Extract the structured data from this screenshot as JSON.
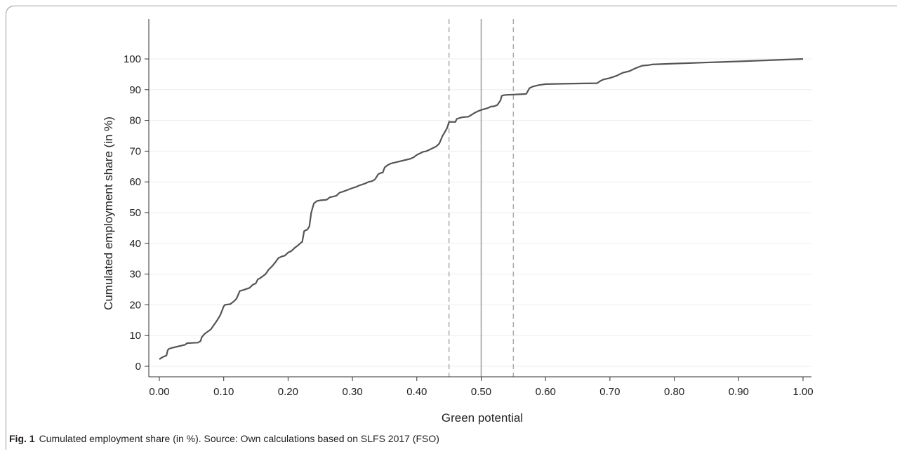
{
  "figure": {
    "label": "Fig. 1",
    "caption": "Cumulated employment share (in %). Source: Own calculations based on SLFS 2017 (FSO)"
  },
  "chart_data": {
    "type": "line",
    "xlabel": "Green potential",
    "ylabel": "Cumulated employment share (in %)",
    "xlim": [
      0,
      1
    ],
    "ylim": [
      0,
      100
    ],
    "x_ticks": [
      0,
      0.1,
      0.2,
      0.3,
      0.4,
      0.5,
      0.6,
      0.7,
      0.8,
      0.9,
      1.0
    ],
    "x_tick_labels": [
      "0.00",
      "0.10",
      "0.20",
      "0.30",
      "0.40",
      "0.50",
      "0.60",
      "0.70",
      "0.80",
      "0.90",
      "1.00"
    ],
    "y_ticks": [
      0,
      10,
      20,
      30,
      40,
      50,
      60,
      70,
      80,
      90,
      100
    ],
    "y_tick_labels": [
      "0",
      "10",
      "20",
      "30",
      "40",
      "50",
      "60",
      "70",
      "80",
      "90",
      "100"
    ],
    "grid": "horizontal",
    "reference_lines": [
      {
        "x": 0.45,
        "style": "dashed"
      },
      {
        "x": 0.5,
        "style": "solid"
      },
      {
        "x": 0.55,
        "style": "dashed"
      }
    ],
    "series": [
      {
        "color": "#555555",
        "x": [
          0.0,
          0.005,
          0.011,
          0.013,
          0.015,
          0.02,
          0.03,
          0.04,
          0.043,
          0.05,
          0.06,
          0.064,
          0.066,
          0.07,
          0.08,
          0.085,
          0.09,
          0.095,
          0.1,
          0.102,
          0.105,
          0.11,
          0.115,
          0.12,
          0.125,
          0.13,
          0.14,
          0.145,
          0.15,
          0.153,
          0.156,
          0.16,
          0.165,
          0.17,
          0.175,
          0.18,
          0.185,
          0.19,
          0.195,
          0.2,
          0.205,
          0.21,
          0.215,
          0.22,
          0.222,
          0.225,
          0.23,
          0.233,
          0.236,
          0.24,
          0.245,
          0.25,
          0.26,
          0.265,
          0.27,
          0.275,
          0.28,
          0.285,
          0.29,
          0.3,
          0.305,
          0.31,
          0.32,
          0.325,
          0.33,
          0.335,
          0.34,
          0.345,
          0.347,
          0.35,
          0.355,
          0.36,
          0.37,
          0.38,
          0.39,
          0.395,
          0.4,
          0.41,
          0.415,
          0.42,
          0.425,
          0.43,
          0.435,
          0.44,
          0.443,
          0.447,
          0.45,
          0.46,
          0.462,
          0.47,
          0.48,
          0.485,
          0.49,
          0.495,
          0.5,
          0.51,
          0.515,
          0.52,
          0.525,
          0.53,
          0.532,
          0.535,
          0.54,
          0.55,
          0.56,
          0.57,
          0.575,
          0.58,
          0.59,
          0.6,
          0.62,
          0.65,
          0.68,
          0.685,
          0.69,
          0.7,
          0.71,
          0.715,
          0.72,
          0.73,
          0.74,
          0.75,
          0.76,
          0.765,
          0.8,
          0.9,
          1.0
        ],
        "y": [
          2.3,
          3.0,
          3.5,
          5.2,
          5.7,
          6.0,
          6.5,
          7.0,
          7.5,
          7.6,
          7.7,
          8.2,
          9.5,
          10.5,
          12.0,
          13.5,
          15.0,
          16.8,
          19.5,
          20.0,
          20.1,
          20.2,
          21.0,
          22.0,
          24.5,
          24.8,
          25.5,
          26.5,
          27.0,
          28.3,
          28.6,
          29.2,
          30.0,
          31.5,
          32.5,
          33.8,
          35.2,
          35.7,
          36.0,
          37.0,
          37.5,
          38.5,
          39.3,
          40.2,
          40.5,
          44.0,
          44.5,
          45.5,
          50.0,
          53.0,
          53.8,
          54.0,
          54.2,
          55.0,
          55.2,
          55.5,
          56.5,
          56.8,
          57.2,
          58.0,
          58.3,
          58.8,
          59.5,
          60.0,
          60.2,
          60.8,
          62.5,
          63.0,
          63.0,
          64.7,
          65.5,
          66.0,
          66.5,
          67.0,
          67.5,
          68.0,
          68.8,
          69.8,
          70.0,
          70.5,
          71.0,
          71.5,
          72.5,
          75.0,
          76.0,
          77.5,
          79.5,
          79.5,
          80.5,
          81.0,
          81.2,
          81.8,
          82.5,
          83.0,
          83.4,
          84.0,
          84.5,
          84.6,
          85.0,
          86.5,
          88.0,
          88.2,
          88.3,
          88.4,
          88.5,
          88.6,
          90.5,
          91.0,
          91.5,
          91.8,
          91.9,
          92.0,
          92.1,
          92.8,
          93.3,
          93.8,
          94.5,
          95.0,
          95.5,
          96.0,
          97.0,
          97.8,
          98.0,
          98.2,
          98.5,
          99.2,
          100.0
        ]
      }
    ]
  }
}
